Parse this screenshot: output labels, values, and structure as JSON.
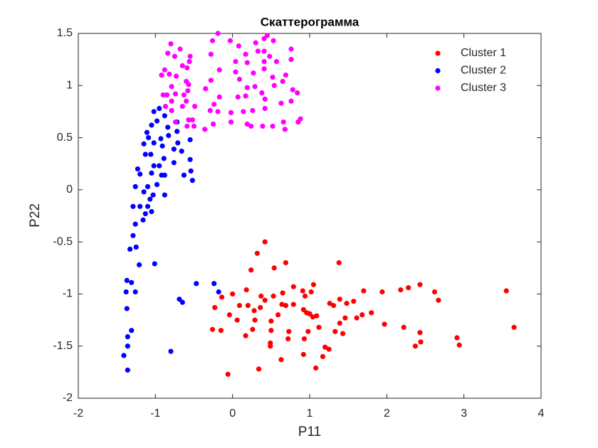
{
  "chart_data": {
    "type": "scatter",
    "title": "Скаттерограмма",
    "x_label": "P11",
    "y_label": "P22",
    "xlim": [
      -2,
      4
    ],
    "ylim": [
      -2,
      1.5
    ],
    "xticks": [
      -2,
      -1,
      0,
      1,
      2,
      3,
      4
    ],
    "yticks": [
      -2,
      -1.5,
      -1,
      -0.5,
      0,
      0.5,
      1,
      1.5
    ],
    "grid": false,
    "legend": "northeast",
    "series": [
      {
        "name": "Cluster 1",
        "color": "#ff0000",
        "x": [
          0.42,
          0.32,
          0.24,
          0.69,
          0.54,
          1.38,
          -0.14,
          0.0,
          0.18,
          -0.23,
          -0.04,
          0.09,
          0.2,
          0.28,
          0.37,
          0.42,
          0.36,
          0.53,
          0.65,
          0.79,
          0.91,
          1.02,
          1.05,
          0.94,
          0.64,
          0.69,
          0.79,
          0.59,
          0.92,
          0.96,
          1.0,
          1.04,
          1.09,
          1.31,
          1.26,
          1.39,
          1.48,
          1.57,
          1.7,
          1.94,
          2.18,
          2.28,
          2.43,
          2.62,
          2.67,
          3.55,
          3.65,
          2.91,
          2.94,
          2.43,
          2.44,
          2.37,
          2.22,
          1.97,
          1.8,
          1.68,
          1.61,
          1.46,
          1.39,
          1.33,
          1.43,
          1.12,
          0.98,
          0.93,
          0.73,
          0.72,
          0.5,
          0.5,
          0.49,
          0.49,
          0.29,
          0.26,
          0.17,
          0.06,
          -0.15,
          -0.26,
          0.34,
          -0.06,
          0.63,
          0.92,
          1.08,
          1.17,
          1.2,
          1.25
        ],
        "y": [
          -0.5,
          -0.61,
          -0.77,
          -0.7,
          -0.75,
          -0.7,
          -1.03,
          -1.0,
          -0.96,
          -1.13,
          -1.2,
          -1.11,
          -1.11,
          -1.16,
          -1.02,
          -1.06,
          -1.13,
          -1.02,
          -0.99,
          -0.93,
          -0.97,
          -0.98,
          -0.91,
          -1.02,
          -1.1,
          -1.11,
          -1.1,
          -1.2,
          -1.15,
          -1.18,
          -1.19,
          -1.22,
          -1.21,
          -1.11,
          -1.09,
          -1.05,
          -1.09,
          -1.07,
          -0.97,
          -0.98,
          -0.96,
          -0.94,
          -0.91,
          -0.98,
          -1.06,
          -0.97,
          -1.32,
          -1.42,
          -1.49,
          -1.37,
          -1.46,
          -1.5,
          -1.32,
          -1.29,
          -1.18,
          -1.2,
          -1.23,
          -1.23,
          -1.28,
          -1.36,
          -1.38,
          -1.32,
          -1.36,
          -1.43,
          -1.36,
          -1.43,
          -1.26,
          -1.35,
          -1.47,
          -1.5,
          -1.25,
          -1.34,
          -1.4,
          -1.25,
          -1.35,
          -1.34,
          -1.72,
          -1.77,
          -1.63,
          -1.58,
          -1.71,
          -1.6,
          -1.51,
          -1.53
        ]
      },
      {
        "name": "Cluster 2",
        "color": "#0000ff",
        "x": [
          -1.02,
          -0.95,
          -0.88,
          -0.98,
          -1.05,
          -0.84,
          -0.72,
          -0.72,
          -0.83,
          -0.93,
          -1.11,
          -1.09,
          -1.02,
          -1.15,
          -0.91,
          -0.76,
          -0.71,
          -0.55,
          -0.66,
          -1.13,
          -1.06,
          -0.89,
          -1.02,
          -0.95,
          -0.76,
          -0.55,
          -0.54,
          -1.23,
          -1.2,
          -1.05,
          -0.92,
          -0.88,
          -0.63,
          -0.52,
          -1.26,
          -1.1,
          -0.98,
          -1.15,
          -0.88,
          -1.03,
          -1.07,
          -1.29,
          -1.2,
          -1.1,
          -1.05,
          -1.13,
          -1.16,
          -1.26,
          -1.29,
          -1.33,
          -1.25,
          -1.21,
          -1.01,
          -1.37,
          -1.31,
          -1.38,
          -1.26,
          -1.37,
          -1.31,
          -1.36,
          -1.36,
          -1.41,
          -1.36,
          -0.8,
          -0.69,
          -0.65,
          -0.47,
          -0.24,
          -0.18
        ],
        "y": [
          0.75,
          0.78,
          0.71,
          0.66,
          0.62,
          0.6,
          0.65,
          0.56,
          0.52,
          0.49,
          0.55,
          0.5,
          0.45,
          0.44,
          0.42,
          0.39,
          0.45,
          0.48,
          0.37,
          0.34,
          0.34,
          0.3,
          0.23,
          0.23,
          0.26,
          0.29,
          0.18,
          0.2,
          0.15,
          0.16,
          0.14,
          0.14,
          0.14,
          0.09,
          0.03,
          0.03,
          0.05,
          -0.02,
          -0.05,
          -0.05,
          -0.09,
          -0.16,
          -0.16,
          -0.16,
          -0.21,
          -0.23,
          -0.29,
          -0.33,
          -0.44,
          -0.57,
          -0.55,
          -0.72,
          -0.71,
          -0.87,
          -0.89,
          -0.98,
          -0.98,
          -1.14,
          -1.35,
          -1.41,
          -1.5,
          -1.59,
          -1.73,
          -1.55,
          -1.05,
          -1.08,
          -0.9,
          -0.9,
          -0.98
        ]
      },
      {
        "name": "Cluster 3",
        "color": "#ff00ff",
        "x": [
          -0.19,
          -0.26,
          -0.03,
          -0.8,
          -0.68,
          -0.84,
          -0.75,
          -0.55,
          -0.56,
          -0.65,
          -0.59,
          -0.88,
          -0.82,
          -0.92,
          -0.73,
          -0.6,
          -0.57,
          -0.79,
          -0.9,
          -0.85,
          -0.74,
          -0.63,
          -0.58,
          -0.79,
          -0.6,
          -0.65,
          -0.87,
          -0.79,
          -0.49,
          -0.28,
          0.08,
          0.17,
          0.3,
          0.41,
          0.45,
          0.53,
          0.33,
          0.41,
          0.48,
          0.76,
          0.76,
          0.57,
          0.41,
          0.19,
          0.04,
          0.04,
          -0.17,
          -0.28,
          0.09,
          0.27,
          0.41,
          0.52,
          0.65,
          0.78,
          0.84,
          0.69,
          0.54,
          0.29,
          0.19,
          0.38,
          0.42,
          0.17,
          0.07,
          -0.17,
          -0.35,
          -0.24,
          -0.29,
          -0.19,
          -0.02,
          0.14,
          0.26,
          0.42,
          0.63,
          0.76,
          0.85,
          0.88,
          0.66,
          0.52,
          0.68,
          0.39,
          0.24,
          0.19,
          -0.02,
          -0.25,
          -0.36,
          -0.59,
          -0.5,
          -0.52,
          -0.74,
          -0.57
        ],
        "y": [
          1.5,
          1.43,
          1.43,
          1.4,
          1.35,
          1.31,
          1.28,
          1.28,
          1.23,
          1.19,
          1.17,
          1.15,
          1.11,
          1.1,
          1.09,
          1.04,
          1.01,
          0.99,
          0.91,
          0.91,
          0.92,
          0.91,
          0.95,
          0.85,
          0.85,
          0.8,
          0.8,
          0.76,
          0.8,
          1.3,
          1.38,
          1.3,
          1.41,
          1.45,
          1.48,
          1.43,
          1.33,
          1.33,
          1.28,
          1.35,
          1.25,
          1.23,
          1.23,
          1.22,
          1.23,
          1.13,
          1.15,
          1.05,
          1.06,
          1.12,
          1.16,
          1.08,
          1.04,
          0.96,
          0.93,
          1.1,
          1.0,
          0.99,
          0.98,
          0.93,
          0.87,
          0.9,
          0.89,
          0.89,
          0.97,
          0.82,
          0.76,
          0.75,
          0.74,
          0.75,
          0.76,
          0.78,
          0.83,
          0.85,
          0.65,
          0.68,
          0.65,
          0.61,
          0.58,
          0.61,
          0.61,
          0.63,
          0.65,
          0.63,
          0.58,
          0.61,
          0.61,
          0.67,
          0.65,
          0.67
        ]
      }
    ]
  }
}
